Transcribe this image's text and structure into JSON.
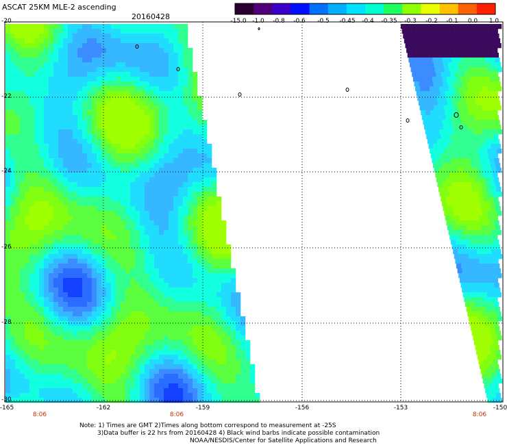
{
  "header": {
    "title": "ASCAT 25KM MLE-2 ascending",
    "date": "20160428"
  },
  "colorbar": {
    "ticks": [
      "-15.0",
      "-1.0",
      "-0.8",
      "-0.6",
      "-0.5",
      "-0.45",
      "-0.4",
      "-0.35",
      "-0.3",
      "-0.2",
      "-0.1",
      "0.0",
      "1.0"
    ],
    "colors": [
      "#2a0030",
      "#50007a",
      "#3a00c8",
      "#0010ff",
      "#0070ff",
      "#00b0ff",
      "#00e0ff",
      "#00ffd0",
      "#20ff60",
      "#90ff00",
      "#e8ff00",
      "#ffc000",
      "#ff6000",
      "#ff2000"
    ]
  },
  "axes": {
    "y_ticks": [
      "-20",
      "-22",
      "-24",
      "-26",
      "-28",
      "-30"
    ],
    "x_ticks": [
      "-165",
      "-162",
      "-159",
      "-156",
      "-153",
      "-150"
    ],
    "time_labels": [
      "8:06",
      "8:06",
      "8:06"
    ],
    "time_color": "#c03000"
  },
  "footer": {
    "note_line1": "Note: 1) Times are GMT 2)Times along bottom correspond to measurement at -25S",
    "note_line2": "3)Data buffer is 22 hrs from 20160428 4) Black wind barbs indicate possible contamination",
    "note_line3": "NOAA/NESDIS/Center for Satellite Applications and Research"
  }
}
